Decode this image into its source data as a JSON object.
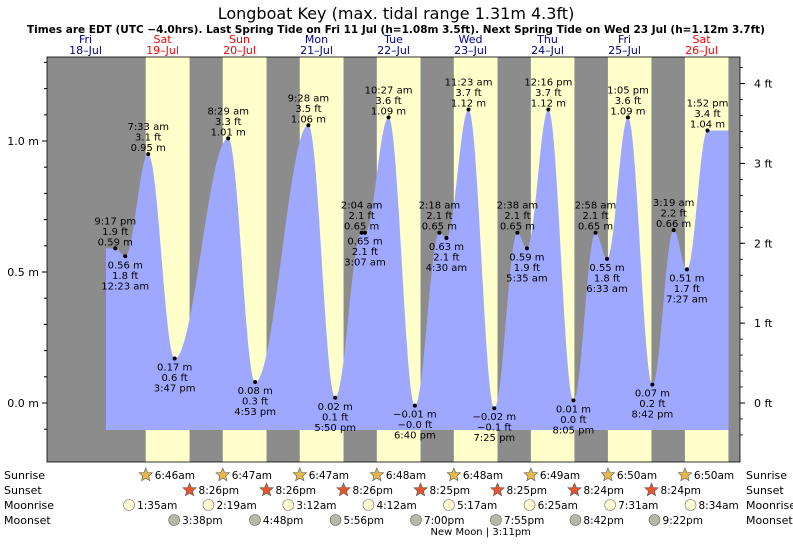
{
  "chart_data": {
    "type": "area",
    "title": "Longboat Key (max. tidal range 1.31m 4.3ft)",
    "subtitle": "Times are EDT (UTC −4.0hrs). Last Spring Tide on Fri 11 Jul (h=1.08m 3.5ft). Next Spring Tide on Wed 23 Jul (h=1.12m 3.7ft)",
    "days": [
      {
        "dow": "Fri",
        "date": "18–Jul"
      },
      {
        "dow": "Sat",
        "date": "19–Jul"
      },
      {
        "dow": "Sun",
        "date": "20–Jul"
      },
      {
        "dow": "Mon",
        "date": "21–Jul"
      },
      {
        "dow": "Tue",
        "date": "22–Jul"
      },
      {
        "dow": "Wed",
        "date": "23–Jul"
      },
      {
        "dow": "Thu",
        "date": "24–Jul"
      },
      {
        "dow": "Fri",
        "date": "25–Jul"
      },
      {
        "dow": "Sat",
        "date": "26–Jul"
      }
    ],
    "x_range_hours": [
      0,
      216
    ],
    "ylim_m": [
      -0.12,
      1.31
    ],
    "y_ticks_m": [
      {
        "v": 0.0,
        "label": "0.0 m"
      },
      {
        "v": 0.5,
        "label": "0.5 m"
      },
      {
        "v": 1.0,
        "label": "1.0 m"
      }
    ],
    "y_ticks_ft": [
      {
        "v": 0,
        "label": "0 ft"
      },
      {
        "v": 1,
        "label": "1 ft"
      },
      {
        "v": 2,
        "label": "2 ft"
      },
      {
        "v": 3,
        "label": "3 ft"
      },
      {
        "v": 4,
        "label": "4 ft"
      }
    ],
    "tides": [
      {
        "t": 21.28,
        "h": 0.59,
        "labels": [
          "9:17 pm",
          "1.9 ft",
          "0.59 m"
        ],
        "pos": "above"
      },
      {
        "t": 24.38,
        "h": 0.56,
        "labels": [
          "0.56 m",
          "1.8 ft",
          "12:23 am"
        ],
        "pos": "below"
      },
      {
        "t": 31.55,
        "h": 0.95,
        "labels": [
          "7:33 am",
          "3.1 ft",
          "0.95 m"
        ],
        "pos": "above"
      },
      {
        "t": 39.78,
        "h": 0.17,
        "labels": [
          "0.17 m",
          "0.6 ft",
          "3:47 pm"
        ],
        "pos": "below"
      },
      {
        "t": 56.48,
        "h": 1.01,
        "labels": [
          "8:29 am",
          "3.3 ft",
          "1.01 m"
        ],
        "pos": "above"
      },
      {
        "t": 64.88,
        "h": 0.08,
        "labels": [
          "0.08 m",
          "0.3 ft",
          "4:53 pm"
        ],
        "pos": "below"
      },
      {
        "t": 81.47,
        "h": 1.06,
        "labels": [
          "9:28 am",
          "3.5 ft",
          "1.06 m"
        ],
        "pos": "above"
      },
      {
        "t": 89.83,
        "h": 0.02,
        "labels": [
          "0.02 m",
          "0.1 ft",
          "5:50 pm"
        ],
        "pos": "below"
      },
      {
        "t": 98.07,
        "h": 0.65,
        "labels": [
          "2:04 am",
          "2.1 ft",
          "0.65 m"
        ],
        "pos": "above"
      },
      {
        "t": 99.12,
        "h": 0.65,
        "labels": [
          "0.65 m",
          "2.1 ft",
          "3:07 am"
        ],
        "pos": "below"
      },
      {
        "t": 106.45,
        "h": 1.09,
        "labels": [
          "10:27 am",
          "3.6 ft",
          "1.09 m"
        ],
        "pos": "above"
      },
      {
        "t": 114.67,
        "h": -0.01,
        "labels": [
          "−0.01 m",
          "−0.0 ft",
          "6:40 pm"
        ],
        "pos": "below"
      },
      {
        "t": 122.3,
        "h": 0.65,
        "labels": [
          "2:18 am",
          "2.1 ft",
          "0.65 m"
        ],
        "pos": "above"
      },
      {
        "t": 124.5,
        "h": 0.63,
        "labels": [
          "0.63 m",
          "2.1 ft",
          "4:30 am"
        ],
        "pos": "below"
      },
      {
        "t": 131.38,
        "h": 1.12,
        "labels": [
          "11:23 am",
          "3.7 ft",
          "1.12 m"
        ],
        "pos": "above"
      },
      {
        "t": 139.42,
        "h": -0.02,
        "labels": [
          "−0.02 m",
          "−0.1 ft",
          "7:25 pm"
        ],
        "pos": "below"
      },
      {
        "t": 146.63,
        "h": 0.65,
        "labels": [
          "2:38 am",
          "2.1 ft",
          "0.65 m"
        ],
        "pos": "above"
      },
      {
        "t": 149.58,
        "h": 0.59,
        "labels": [
          "0.59 m",
          "1.9 ft",
          "5:35 am"
        ],
        "pos": "below"
      },
      {
        "t": 156.27,
        "h": 1.12,
        "labels": [
          "12:16 pm",
          "3.7 ft",
          "1.12 m"
        ],
        "pos": "above"
      },
      {
        "t": 164.08,
        "h": 0.01,
        "labels": [
          "0.01 m",
          "0.0 ft",
          "8:05 pm"
        ],
        "pos": "below"
      },
      {
        "t": 170.97,
        "h": 0.65,
        "labels": [
          "2:58 am",
          "2.1 ft",
          "0.65 m"
        ],
        "pos": "above"
      },
      {
        "t": 174.55,
        "h": 0.55,
        "labels": [
          "0.55 m",
          "1.8 ft",
          "6:33 am"
        ],
        "pos": "below"
      },
      {
        "t": 181.08,
        "h": 1.09,
        "labels": [
          "1:05 pm",
          "3.6 ft",
          "1.09 m"
        ],
        "pos": "above"
      },
      {
        "t": 188.7,
        "h": 0.07,
        "labels": [
          "0.07 m",
          "0.2 ft",
          "8:42 pm"
        ],
        "pos": "below"
      },
      {
        "t": 195.32,
        "h": 0.66,
        "labels": [
          "3:19 am",
          "2.2 ft",
          "0.66 m"
        ],
        "pos": "above"
      },
      {
        "t": 199.45,
        "h": 0.51,
        "labels": [
          "0.51 m",
          "1.7 ft",
          "7:27 am"
        ],
        "pos": "below"
      },
      {
        "t": 205.87,
        "h": 1.04,
        "labels": [
          "1:52 pm",
          "3.4 ft",
          "1.04 m"
        ],
        "pos": "above"
      }
    ],
    "sunrise": [
      {
        "t": 30.77,
        "label": "6:46am"
      },
      {
        "t": 54.78,
        "label": "6:47am"
      },
      {
        "t": 78.78,
        "label": "6:47am"
      },
      {
        "t": 102.8,
        "label": "6:48am"
      },
      {
        "t": 126.8,
        "label": "6:48am"
      },
      {
        "t": 150.82,
        "label": "6:49am"
      },
      {
        "t": 174.83,
        "label": "6:50am"
      },
      {
        "t": 198.83,
        "label": "6:50am"
      }
    ],
    "sunset": [
      {
        "t": 44.43,
        "label": "8:26pm"
      },
      {
        "t": 68.43,
        "label": "8:26pm"
      },
      {
        "t": 92.43,
        "label": "8:26pm"
      },
      {
        "t": 116.42,
        "label": "8:25pm"
      },
      {
        "t": 140.42,
        "label": "8:25pm"
      },
      {
        "t": 164.4,
        "label": "8:24pm"
      },
      {
        "t": 188.4,
        "label": "8:24pm"
      }
    ],
    "moonrise": [
      {
        "t": 25.58,
        "label": "1:35am"
      },
      {
        "t": 50.32,
        "label": "2:19am"
      },
      {
        "t": 75.2,
        "label": "3:12am"
      },
      {
        "t": 100.2,
        "label": "4:12am"
      },
      {
        "t": 125.28,
        "label": "5:17am"
      },
      {
        "t": 150.42,
        "label": "6:25am"
      },
      {
        "t": 175.52,
        "label": "7:31am"
      },
      {
        "t": 200.57,
        "label": "8:34am"
      }
    ],
    "moonset": [
      {
        "t": 39.63,
        "label": "3:38pm"
      },
      {
        "t": 64.8,
        "label": "4:48pm"
      },
      {
        "t": 89.93,
        "label": "5:56pm"
      },
      {
        "t": 115.0,
        "label": "7:00pm"
      },
      {
        "t": 139.92,
        "label": "7:55pm"
      },
      {
        "t": 164.7,
        "label": "8:42pm"
      },
      {
        "t": 189.37,
        "label": "9:22pm"
      }
    ],
    "moon_phase": {
      "t": 135.18,
      "label": "New Moon | 3:11pm"
    },
    "row_labels": {
      "sunrise": "Sunrise",
      "sunset": "Sunset",
      "moonrise": "Moonrise",
      "moonset": "Moonset"
    },
    "colors": {
      "night": "#8c8c8c",
      "day": "#ffffcc",
      "water": "#9fa8ff",
      "weekend": "#ff0000",
      "weekday": "#000080",
      "sunrise_star": "#e8b84a",
      "sunset_star": "#e4572e",
      "moonrise_disc": "#fffbd0",
      "moonset_disc": "#b8b8a8"
    }
  }
}
